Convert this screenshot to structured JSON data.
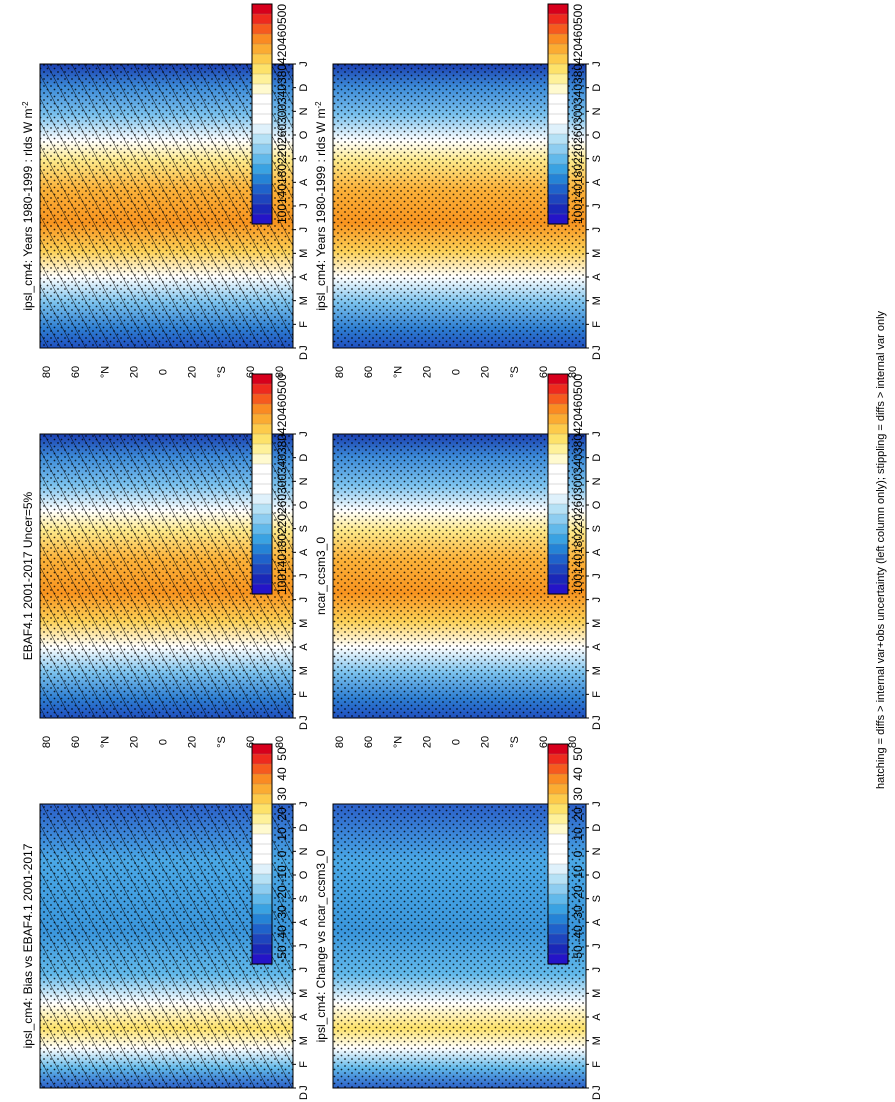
{
  "chart_data": [
    {
      "type": "heatmap",
      "panel": "top-left",
      "title": "ipsl_cm4: Years 1980-1999 : rlds W m",
      "title_sup": "-2",
      "scale": "abs",
      "x_ticks": [
        "J",
        "F",
        "M",
        "A",
        "M",
        "J",
        "J",
        "A",
        "S",
        "O",
        "N",
        "D",
        "J"
      ],
      "y_tick_labels": [
        "80",
        "60",
        "°N",
        "20",
        "0",
        "20",
        "°S",
        "60",
        "80"
      ],
      "y_end_label": "D",
      "hatching": true
    },
    {
      "type": "heatmap",
      "panel": "top-right",
      "title": "ipsl_cm4: Years 1980-1999 : rlds W m",
      "title_sup": "-2",
      "scale": "abs",
      "x_ticks": [
        "J",
        "F",
        "M",
        "A",
        "M",
        "J",
        "J",
        "A",
        "S",
        "O",
        "N",
        "D",
        "J"
      ],
      "y_tick_labels": [
        "80",
        "60",
        "°N",
        "20",
        "0",
        "20",
        "°S",
        "60",
        "80"
      ],
      "y_end_label": "D",
      "hatching": false
    },
    {
      "type": "heatmap",
      "panel": "middle-left",
      "title": "EBAF4.1 2001-2017 Uncer=5%",
      "title_sup": "",
      "scale": "abs",
      "x_ticks": [
        "J",
        "F",
        "M",
        "A",
        "M",
        "J",
        "J",
        "A",
        "S",
        "O",
        "N",
        "D",
        "J"
      ],
      "y_tick_labels": [
        "80",
        "60",
        "°N",
        "20",
        "0",
        "20",
        "°S",
        "60",
        "80"
      ],
      "y_end_label": "D",
      "hatching": true
    },
    {
      "type": "heatmap",
      "panel": "middle-right",
      "title": "ncar_ccsm3_0",
      "title_sup": "",
      "scale": "abs",
      "x_ticks": [
        "J",
        "F",
        "M",
        "A",
        "M",
        "J",
        "J",
        "A",
        "S",
        "O",
        "N",
        "D",
        "J"
      ],
      "y_tick_labels": [
        "80",
        "60",
        "°N",
        "20",
        "0",
        "20",
        "°S",
        "60",
        "80"
      ],
      "y_end_label": "D",
      "hatching": false
    },
    {
      "type": "heatmap",
      "panel": "bottom-left",
      "title": "ipsl_cm4: Bias vs EBAF4.1 2001-2017",
      "title_sup": "",
      "scale": "diff",
      "x_ticks": [
        "J",
        "F",
        "M",
        "A",
        "M",
        "J",
        "J",
        "A",
        "S",
        "O",
        "N",
        "D",
        "J"
      ],
      "y_tick_labels": [
        "80",
        "60",
        "°N",
        "20",
        "0",
        "20",
        "°S",
        "60",
        "80"
      ],
      "y_end_label": "D",
      "hatching": true
    },
    {
      "type": "heatmap",
      "panel": "bottom-right",
      "title": "ipsl_cm4: Change vs ncar_ccsm3_0",
      "title_sup": "",
      "scale": "diff",
      "x_ticks": [
        "J",
        "F",
        "M",
        "A",
        "M",
        "J",
        "J",
        "A",
        "S",
        "O",
        "N",
        "D",
        "J"
      ],
      "y_tick_labels": [
        "80",
        "60",
        "°N",
        "20",
        "0",
        "20",
        "°S",
        "60",
        "80"
      ],
      "y_end_label": "D",
      "hatching": false
    }
  ],
  "colorbars": {
    "abs": {
      "labels": [
        "500",
        "460",
        "420",
        "380",
        "340",
        "300",
        "260",
        "220",
        "180",
        "140",
        "100"
      ],
      "colors": [
        "#d7001c",
        "#ee2a1e",
        "#f65a1e",
        "#fa8b22",
        "#fbac32",
        "#fdcb4b",
        "#fde26a",
        "#fef19a",
        "#fffacf",
        "#ffffff",
        "#ffffff",
        "#ffffff",
        "#dff1fb",
        "#b6e1f5",
        "#8ecdf0",
        "#62b9ea",
        "#3aa2e2",
        "#2583d6",
        "#1f62cb",
        "#1e45be",
        "#1a28b8",
        "#2414c8"
      ]
    },
    "diff": {
      "labels": [
        "50",
        "40",
        "30",
        "20",
        "10",
        "0",
        "-10",
        "-20",
        "-30",
        "-40",
        "-50"
      ],
      "colors": [
        "#d7001c",
        "#ee2a1e",
        "#f65a1e",
        "#fa8b22",
        "#fbac32",
        "#fdcb4b",
        "#fde26a",
        "#fef19a",
        "#fffacf",
        "#ffffff",
        "#ffffff",
        "#ffffff",
        "#dff1fb",
        "#b6e1f5",
        "#8ecdf0",
        "#62b9ea",
        "#3aa2e2",
        "#2583d6",
        "#1f62cb",
        "#1e45be",
        "#1a28b8",
        "#2414c8"
      ]
    }
  },
  "footnote": "hatching = diffs > internal var+obs uncertainty (left column only); stippling = diffs > internal var only"
}
